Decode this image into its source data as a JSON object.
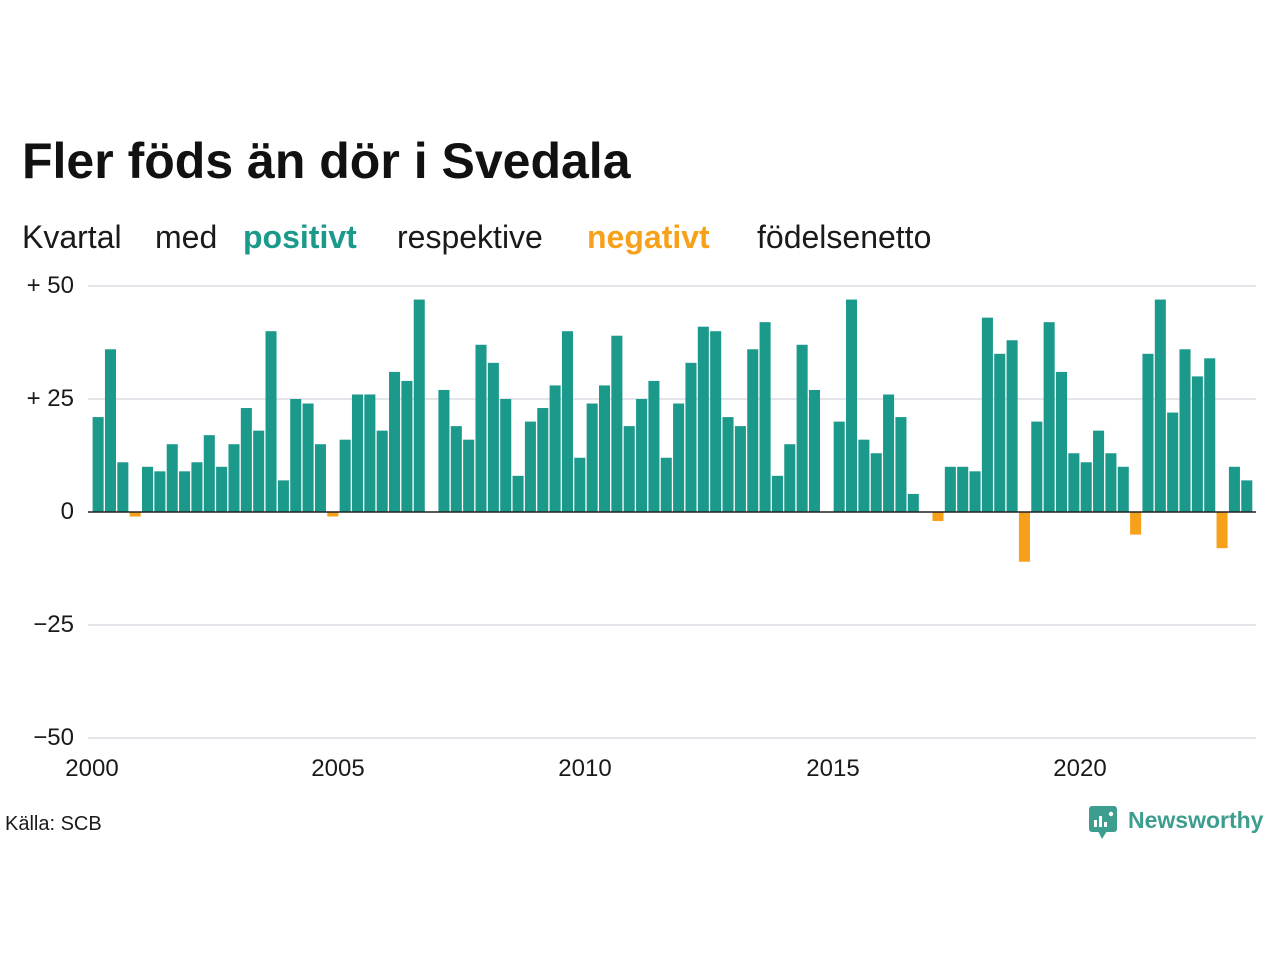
{
  "title": "Fler föds än dör i Svedala",
  "subtitle": [
    "Kvartal",
    "med",
    "positivt",
    "respektive",
    "negativt",
    "födelsenetto"
  ],
  "colors": {
    "positive": "#1b998b",
    "negative": "#f7a11a",
    "grid": "#dcdce4",
    "zero_line": "#222222",
    "logo": "#3d9e90"
  },
  "chart_data": {
    "type": "bar",
    "title": "Fler föds än dör i Svedala",
    "xlabel": "",
    "ylabel": "",
    "ylim": [
      -50,
      50
    ],
    "yticks": [
      50,
      25,
      0,
      -25,
      -50
    ],
    "ytick_labels": [
      "+ 50",
      "+ 25",
      "0",
      "−25",
      "−50"
    ],
    "xtick_labels": [
      "2000",
      "2005",
      "2010",
      "2015",
      "2020"
    ],
    "grid": true,
    "legend": "none",
    "x": [
      "2000-Q1",
      "2000-Q2",
      "2000-Q3",
      "2000-Q4",
      "2001-Q1",
      "2001-Q2",
      "2001-Q3",
      "2001-Q4",
      "2002-Q1",
      "2002-Q2",
      "2002-Q3",
      "2002-Q4",
      "2003-Q1",
      "2003-Q2",
      "2003-Q3",
      "2003-Q4",
      "2004-Q1",
      "2004-Q2",
      "2004-Q3",
      "2004-Q4",
      "2005-Q1",
      "2005-Q2",
      "2005-Q3",
      "2005-Q4",
      "2006-Q1",
      "2006-Q2",
      "2006-Q3",
      "2006-Q4",
      "2007-Q1",
      "2007-Q2",
      "2007-Q3",
      "2007-Q4",
      "2008-Q1",
      "2008-Q2",
      "2008-Q3",
      "2008-Q4",
      "2009-Q1",
      "2009-Q2",
      "2009-Q3",
      "2009-Q4",
      "2010-Q1",
      "2010-Q2",
      "2010-Q3",
      "2010-Q4",
      "2011-Q1",
      "2011-Q2",
      "2011-Q3",
      "2011-Q4",
      "2012-Q1",
      "2012-Q2",
      "2012-Q3",
      "2012-Q4",
      "2013-Q1",
      "2013-Q2",
      "2013-Q3",
      "2013-Q4",
      "2014-Q1",
      "2014-Q2",
      "2014-Q3",
      "2014-Q4",
      "2015-Q1",
      "2015-Q2",
      "2015-Q3",
      "2015-Q4",
      "2016-Q1",
      "2016-Q2",
      "2016-Q3",
      "2016-Q4",
      "2017-Q1",
      "2017-Q2",
      "2017-Q3",
      "2017-Q4",
      "2018-Q1",
      "2018-Q2",
      "2018-Q3",
      "2018-Q4",
      "2019-Q1",
      "2019-Q2",
      "2019-Q3",
      "2019-Q4",
      "2020-Q1",
      "2020-Q2",
      "2020-Q3",
      "2020-Q4",
      "2021-Q1",
      "2021-Q2",
      "2021-Q3",
      "2021-Q4",
      "2022-Q1",
      "2022-Q2",
      "2022-Q3",
      "2022-Q4",
      "2023-Q1",
      "2023-Q2"
    ],
    "values": [
      21,
      36,
      11,
      -1,
      10,
      9,
      15,
      9,
      11,
      17,
      10,
      15,
      23,
      18,
      40,
      7,
      25,
      24,
      15,
      -1,
      16,
      26,
      26,
      18,
      31,
      29,
      47,
      0,
      27,
      19,
      16,
      37,
      33,
      25,
      8,
      20,
      23,
      28,
      40,
      12,
      24,
      28,
      39,
      19,
      25,
      29,
      12,
      24,
      33,
      41,
      40,
      21,
      19,
      36,
      42,
      8,
      15,
      37,
      27,
      0,
      20,
      47,
      16,
      13,
      26,
      21,
      4,
      0,
      -2,
      10,
      10,
      9,
      43,
      35,
      38,
      -11,
      20,
      42,
      31,
      13,
      11,
      18,
      13,
      10,
      -5,
      35,
      47,
      22,
      36,
      30,
      34,
      -8,
      10,
      7
    ]
  },
  "source": "Källa: SCB",
  "logo": {
    "text": "Newsworthy",
    "icon": "newsworthy-chart-bubble-icon"
  }
}
